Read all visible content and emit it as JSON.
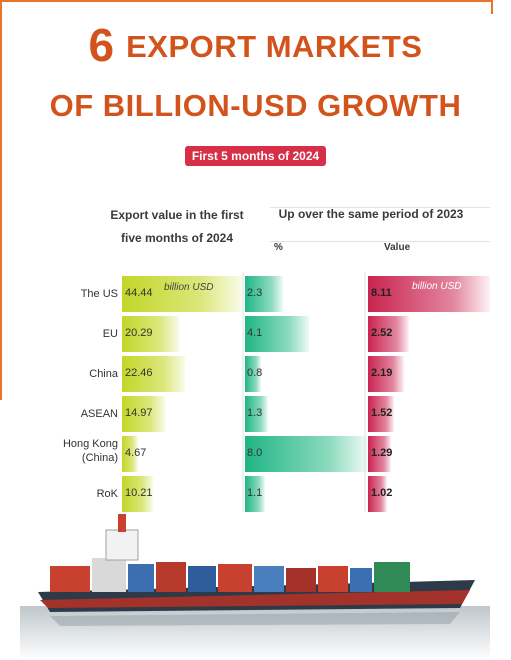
{
  "title": {
    "number": "6",
    "line1": "EXPORT MARKETS",
    "line2": "OF BILLION-USD GROWTH"
  },
  "badge": "First 5 months of 2024",
  "headers": {
    "left_line1": "Export value in the first",
    "left_line2": "five months of 2024",
    "right": "Up over the same period of 2023",
    "pct": "%",
    "value": "Value"
  },
  "unit": "billion USD",
  "colors": {
    "title": "#d2541c",
    "badge": "#d62f47",
    "export_bar": "#c3d628",
    "pct_bar": "#1fb585",
    "value_bar": "#c92450"
  },
  "chart_data": {
    "type": "bar",
    "orientation": "horizontal",
    "categories": [
      "The US",
      "EU",
      "China",
      "ASEAN",
      "Hong Kong (China)",
      "RoK"
    ],
    "series": [
      {
        "name": "Export value in the first five months of 2024",
        "unit": "billion USD",
        "values": [
          44.44,
          20.29,
          22.46,
          14.97,
          4.67,
          10.21
        ]
      },
      {
        "name": "%",
        "values": [
          2.3,
          4.1,
          0.8,
          1.3,
          8.0,
          1.1
        ]
      },
      {
        "name": "Value",
        "unit": "billion USD",
        "values": [
          8.11,
          2.52,
          2.19,
          1.52,
          1.29,
          1.02
        ]
      }
    ],
    "labels": {
      "export": [
        "44.44",
        "20.29",
        "22.46",
        "14.97",
        "4.67",
        "10.21"
      ],
      "pct": [
        "2.3",
        "4.1",
        "0.8",
        "1.3",
        "8.0",
        "1.1"
      ],
      "value": [
        "8.11",
        "2.52",
        "2.19",
        "1.52",
        "1.29",
        "1.02"
      ]
    },
    "row_labels": [
      [
        "The US"
      ],
      [
        "EU"
      ],
      [
        "China"
      ],
      [
        "ASEAN"
      ],
      [
        "Hong Kong",
        "(China)"
      ],
      [
        "RoK"
      ]
    ]
  }
}
